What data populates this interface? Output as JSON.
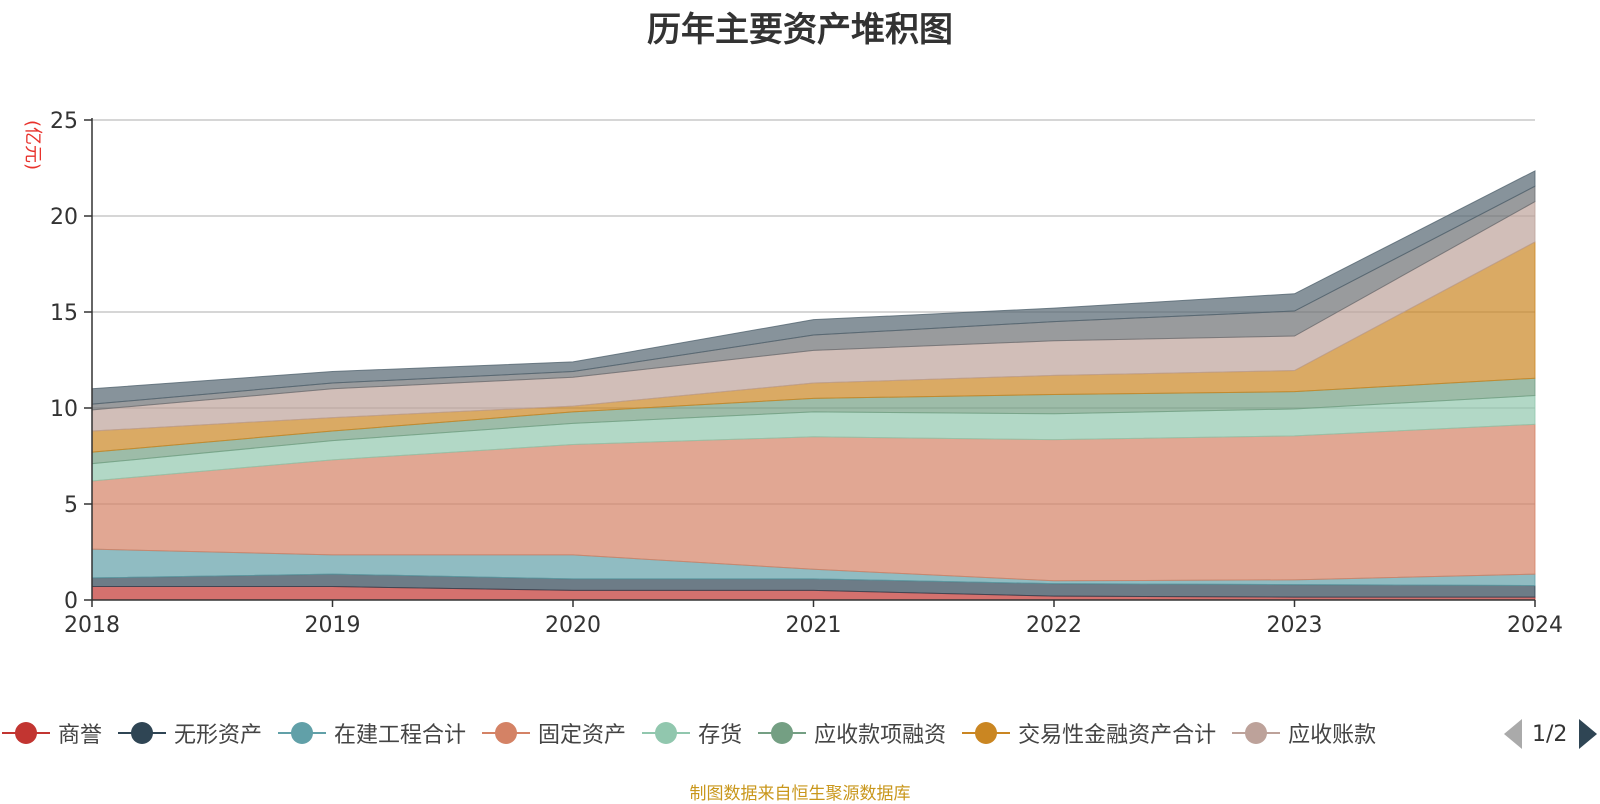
{
  "title": "历年主要资产堆积图",
  "unit_label": "(亿元)",
  "source_note": "制图数据来自恒生聚源数据库",
  "legend_page": "1/2",
  "legend": [
    {
      "name": "商誉",
      "color": "#c23531"
    },
    {
      "name": "无形资产",
      "color": "#2f4554"
    },
    {
      "name": "在建工程合计",
      "color": "#61a0a8"
    },
    {
      "name": "固定资产",
      "color": "#d48265"
    },
    {
      "name": "存货",
      "color": "#91c7ae"
    },
    {
      "name": "应收款项融资",
      "color": "#749f83"
    },
    {
      "name": "交易性金融资产合计",
      "color": "#ca8622"
    },
    {
      "name": "应收账款",
      "color": "#bda29a"
    }
  ],
  "chart_data": {
    "type": "area",
    "stacked": true,
    "title": "历年主要资产堆积图",
    "ylabel": "(亿元)",
    "x": [
      "2018",
      "2019",
      "2020",
      "2021",
      "2022",
      "2023",
      "2024"
    ],
    "ylim": [
      0,
      25
    ],
    "yticks": [
      0,
      5,
      10,
      15,
      20,
      25
    ],
    "grid": true,
    "legend_position": "bottom",
    "series": [
      {
        "name": "商誉",
        "color": "#c23531",
        "values": [
          0.7,
          0.7,
          0.5,
          0.5,
          0.2,
          0.15,
          0.15
        ]
      },
      {
        "name": "无形资产",
        "color": "#2f4554",
        "values": [
          0.45,
          0.65,
          0.6,
          0.6,
          0.65,
          0.65,
          0.6
        ]
      },
      {
        "name": "在建工程合计",
        "color": "#61a0a8",
        "values": [
          1.5,
          1.0,
          1.25,
          0.5,
          0.15,
          0.25,
          0.6
        ]
      },
      {
        "name": "固定资产",
        "color": "#d48265",
        "values": [
          3.55,
          4.95,
          5.75,
          6.9,
          7.35,
          7.5,
          7.8
        ]
      },
      {
        "name": "存货",
        "color": "#91c7ae",
        "values": [
          0.9,
          1.0,
          1.1,
          1.3,
          1.35,
          1.4,
          1.5
        ]
      },
      {
        "name": "应收款项融资",
        "color": "#749f83",
        "values": [
          0.6,
          0.5,
          0.6,
          0.7,
          1.0,
          0.9,
          0.9
        ]
      },
      {
        "name": "交易性金融资产合计",
        "color": "#ca8622",
        "values": [
          1.1,
          0.7,
          0.3,
          0.8,
          1.0,
          1.1,
          7.1
        ]
      },
      {
        "name": "应收账款",
        "color": "#bda29a",
        "values": [
          1.1,
          1.5,
          1.5,
          1.7,
          1.8,
          1.8,
          2.1
        ]
      },
      {
        "values": [
          0.3,
          0.3,
          0.3,
          0.8,
          1.0,
          1.3,
          0.8
        ]
      },
      {
        "values": [
          0.8,
          0.6,
          0.5,
          0.8,
          0.7,
          0.9,
          0.8
        ]
      }
    ]
  }
}
